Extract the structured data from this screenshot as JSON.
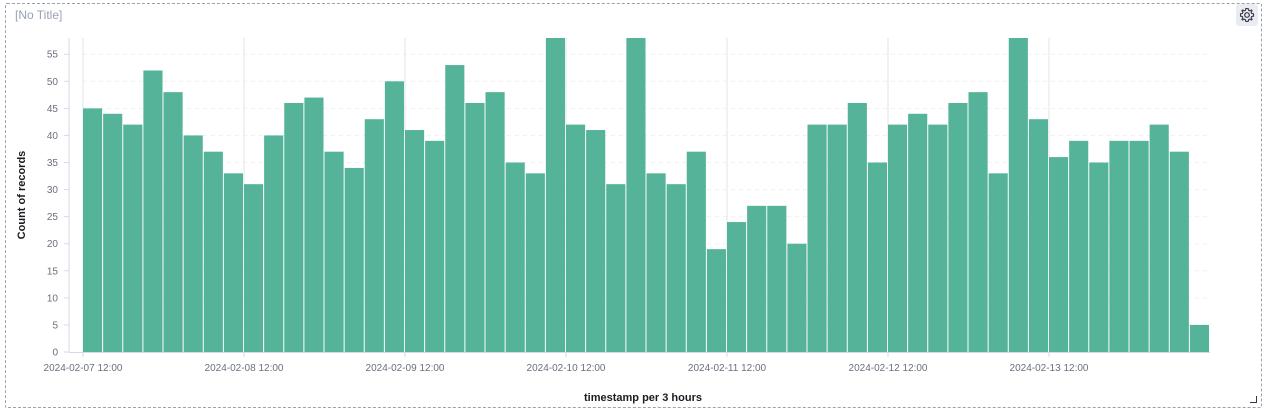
{
  "panel": {
    "title": "[No Title]",
    "settings_icon": "gear-icon"
  },
  "colors": {
    "bar": "#54b399",
    "grid": "#eef0f3",
    "major_grid": "#e0e3e8"
  },
  "chart_data": {
    "type": "bar",
    "xlabel": "timestamp per 3 hours",
    "ylabel": "Count of records",
    "ylim": [
      0,
      58
    ],
    "yticks": [
      0,
      5,
      10,
      15,
      20,
      25,
      30,
      35,
      40,
      45,
      50,
      55
    ],
    "grid": true,
    "x_start": "2024-02-07 12:00",
    "interval": "3 hours",
    "xtick_labels": [
      {
        "index": 0,
        "label": "2024-02-07 12:00"
      },
      {
        "index": 8,
        "label": "2024-02-08 12:00"
      },
      {
        "index": 16,
        "label": "2024-02-09 12:00"
      },
      {
        "index": 24,
        "label": "2024-02-10 12:00"
      },
      {
        "index": 32,
        "label": "2024-02-11 12:00"
      },
      {
        "index": 40,
        "label": "2024-02-12 12:00"
      },
      {
        "index": 48,
        "label": "2024-02-13 12:00"
      }
    ],
    "values": [
      45,
      44,
      42,
      52,
      48,
      40,
      37,
      33,
      31,
      40,
      46,
      47,
      37,
      34,
      43,
      50,
      41,
      39,
      53,
      46,
      48,
      35,
      33,
      58,
      42,
      41,
      31,
      58,
      33,
      31,
      37,
      19,
      24,
      27,
      27,
      20,
      42,
      42,
      46,
      35,
      42,
      44,
      42,
      46,
      48,
      33,
      58,
      43,
      36,
      39,
      35,
      39,
      39,
      42,
      37,
      5
    ]
  }
}
